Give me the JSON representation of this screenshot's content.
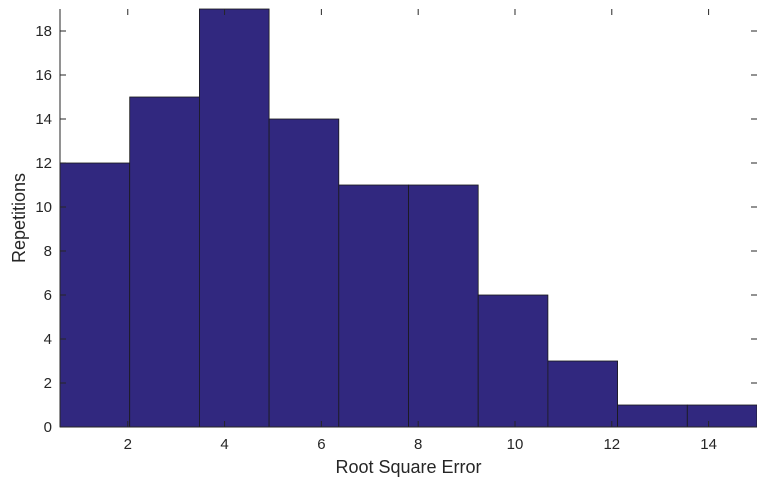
{
  "chart_data": {
    "type": "bar",
    "title": "",
    "xlabel": "Root Square Error",
    "ylabel": "Repetitions",
    "xlim": [
      0.6,
      15.0
    ],
    "ylim": [
      0,
      19
    ],
    "bin_edges": [
      0.6,
      2.04,
      3.48,
      4.92,
      6.36,
      7.8,
      9.24,
      10.68,
      12.12,
      13.56,
      15.0
    ],
    "values": [
      12,
      15,
      19,
      14,
      11,
      11,
      6,
      3,
      1,
      1
    ],
    "xticks": [
      2,
      4,
      6,
      8,
      10,
      12,
      14
    ],
    "yticks": [
      0,
      2,
      4,
      6,
      8,
      10,
      12,
      14,
      16,
      18
    ],
    "bar_color": "#31287f",
    "grid": false
  }
}
